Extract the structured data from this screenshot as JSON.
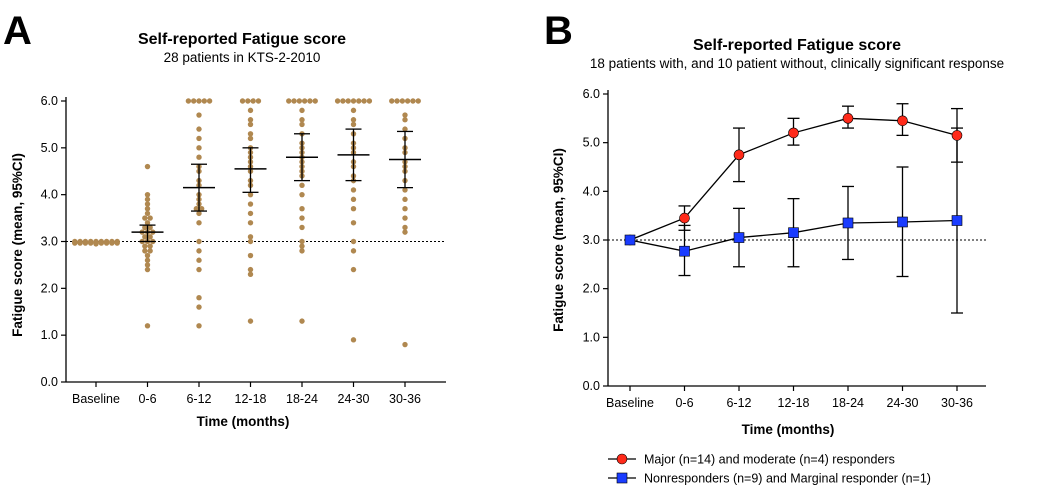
{
  "panels": [
    {
      "letter": "A",
      "title": "Self-reported Fatigue score",
      "subtitle": "28 patients in KTS-2-2010",
      "xlabel": "Time (months)",
      "ylabel": "Fatigue score (mean, 95%CI)"
    },
    {
      "letter": "B",
      "title": "Self-reported Fatigue score",
      "subtitle": "18 patients with, and 10 patient without, clinically significant response",
      "xlabel": "Time (months)",
      "ylabel": "Fatigue score (mean, 95%CI)"
    }
  ],
  "chart_data": [
    {
      "type": "scatter",
      "title": "Self-reported Fatigue score",
      "subtitle": "28 patients in KTS-2-2010",
      "xlabel": "Time (months)",
      "ylabel": "Fatigue score (mean, 95%CI)",
      "categories": [
        "Baseline",
        "0-6",
        "6-12",
        "12-18",
        "18-24",
        "24-30",
        "30-36"
      ],
      "ylim": [
        0,
        6.0
      ],
      "yticks": [
        "0.0",
        "1.0",
        "2.0",
        "3.0",
        "4.0",
        "5.0",
        "6.0"
      ],
      "reference_line": 3.0,
      "point_color": "#b08850",
      "points": [
        [
          3,
          3,
          3,
          3,
          3,
          3,
          3,
          3,
          3,
          3,
          3,
          3,
          3,
          3,
          3,
          3,
          3,
          3,
          3,
          3,
          3,
          3,
          3,
          3,
          3,
          3,
          3,
          3
        ],
        [
          4.6,
          4.0,
          3.9,
          3.8,
          3.7,
          3.6,
          3.5,
          3.5,
          3.4,
          3.3,
          3.3,
          3.2,
          3.2,
          3.2,
          3.1,
          3.1,
          3.0,
          3.0,
          3.0,
          2.9,
          2.9,
          2.8,
          2.8,
          2.7,
          2.6,
          2.5,
          2.4,
          1.2
        ],
        [
          6.0,
          6.0,
          6.0,
          6.0,
          6.0,
          5.7,
          5.4,
          5.2,
          5.0,
          4.8,
          4.6,
          4.5,
          4.3,
          4.2,
          4.0,
          3.9,
          3.8,
          3.7,
          3.7,
          3.6,
          3.4,
          3.0,
          2.8,
          2.6,
          2.4,
          1.8,
          1.6,
          1.2
        ],
        [
          6.0,
          6.0,
          6.0,
          6.0,
          5.8,
          5.6,
          5.5,
          5.3,
          5.2,
          5.0,
          4.9,
          4.8,
          4.7,
          4.6,
          4.5,
          4.3,
          4.2,
          4.0,
          3.8,
          3.6,
          3.4,
          3.1,
          3.0,
          2.7,
          2.4,
          2.3,
          1.3
        ],
        [
          6.0,
          6.0,
          6.0,
          6.0,
          6.0,
          6.0,
          5.8,
          5.6,
          5.5,
          5.3,
          5.1,
          5.0,
          4.9,
          4.8,
          4.7,
          4.6,
          4.5,
          4.4,
          4.2,
          4.0,
          3.7,
          3.5,
          3.3,
          3.0,
          2.9,
          2.8,
          1.3
        ],
        [
          6.0,
          6.0,
          6.0,
          6.0,
          6.0,
          6.0,
          6.0,
          5.8,
          5.6,
          5.5,
          5.3,
          5.1,
          5.0,
          4.9,
          4.7,
          4.6,
          4.4,
          4.3,
          4.1,
          3.9,
          3.7,
          3.4,
          3.0,
          2.8,
          2.4,
          0.9
        ],
        [
          6.0,
          6.0,
          6.0,
          6.0,
          6.0,
          6.0,
          5.7,
          5.6,
          5.4,
          5.2,
          5.0,
          4.9,
          4.7,
          4.6,
          4.5,
          4.3,
          4.1,
          3.9,
          3.7,
          3.5,
          3.3,
          3.2,
          0.8
        ]
      ],
      "mean": [
        3.0,
        3.2,
        4.15,
        4.55,
        4.8,
        4.85,
        4.75
      ],
      "ci_low": [
        3.0,
        3.0,
        3.65,
        4.05,
        4.3,
        4.3,
        4.15
      ],
      "ci_high": [
        3.0,
        3.35,
        4.65,
        5.0,
        5.3,
        5.4,
        5.35
      ]
    },
    {
      "type": "line",
      "title": "Self-reported Fatigue score",
      "subtitle": "18 patients with, and 10 patient without, clinically significant response",
      "xlabel": "Time (months)",
      "ylabel": "Fatigue score (mean, 95%CI)",
      "categories": [
        "Baseline",
        "0-6",
        "6-12",
        "12-18",
        "18-24",
        "24-30",
        "30-36"
      ],
      "ylim": [
        0,
        6.0
      ],
      "yticks": [
        "0.0",
        "1.0",
        "2.0",
        "3.0",
        "4.0",
        "5.0",
        "6.0"
      ],
      "reference_line": 3.0,
      "legend_position": "bottom",
      "series": [
        {
          "name": "Major (n=14) and moderate (n=4) responders",
          "color": "#ff2a1a",
          "marker": "circle",
          "values": [
            3.0,
            3.45,
            4.75,
            5.2,
            5.5,
            5.45,
            5.15
          ],
          "ci_low": [
            3.0,
            3.2,
            4.2,
            4.95,
            5.3,
            5.15,
            4.6
          ],
          "ci_high": [
            3.0,
            3.7,
            5.3,
            5.5,
            5.75,
            5.8,
            5.7
          ]
        },
        {
          "name": "Nonresponders (n=9) and Marginal responder (n=1)",
          "color": "#1a3cff",
          "marker": "square",
          "values": [
            3.0,
            2.77,
            3.05,
            3.15,
            3.35,
            3.37,
            3.4
          ],
          "ci_low": [
            3.0,
            2.27,
            2.45,
            2.45,
            2.6,
            2.25,
            1.5
          ],
          "ci_high": [
            3.0,
            3.3,
            3.65,
            3.85,
            4.1,
            4.5,
            5.3
          ]
        }
      ]
    }
  ]
}
